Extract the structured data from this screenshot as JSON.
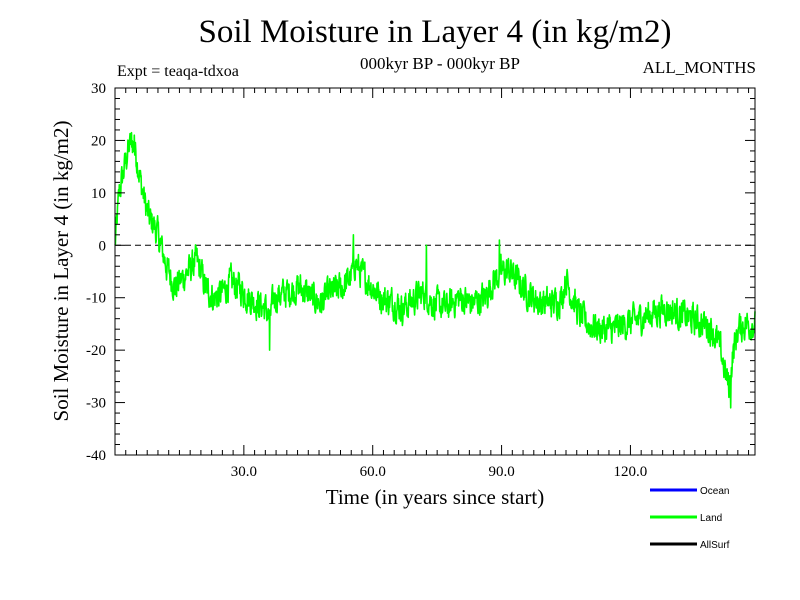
{
  "chart_data": {
    "type": "line",
    "title": "Soil Moisture in Layer 4 (in kg/m2)",
    "subtitle": "000kyr BP - 000kyr BP",
    "experiment": "Expt = teaqa-tdxoa",
    "season": "ALL_MONTHS",
    "xlabel": "Time (in years since start)",
    "ylabel": "Soil Moisture in Layer 4 (in kg/m2)",
    "xlim": [
      0,
      149
    ],
    "ylim": [
      -40,
      30
    ],
    "xticks": [
      30,
      60,
      90,
      120
    ],
    "xtick_labels": [
      "30.0",
      "60.0",
      "90.0",
      "120.0"
    ],
    "yticks": [
      -40,
      -30,
      -20,
      -10,
      0,
      10,
      20,
      30
    ],
    "ytick_labels": [
      "-40",
      "-30",
      "-20",
      "-10",
      "0",
      "10",
      "20",
      "30"
    ],
    "reference_line": 0,
    "legend": [
      {
        "name": "Ocean",
        "color": "#0000ff"
      },
      {
        "name": "Land",
        "color": "#00ff00"
      },
      {
        "name": "AllSurf",
        "color": "#000000"
      }
    ],
    "series": [
      {
        "name": "Land",
        "color": "#00ff00",
        "sampling": "monthly",
        "anchors": [
          [
            0,
            0
          ],
          [
            0.5,
            5
          ],
          [
            1,
            10
          ],
          [
            2,
            14
          ],
          [
            3,
            18
          ],
          [
            4,
            20
          ],
          [
            5,
            17
          ],
          [
            6,
            12
          ],
          [
            7,
            8
          ],
          [
            8,
            5
          ],
          [
            9,
            4
          ],
          [
            10,
            2
          ],
          [
            11,
            -1
          ],
          [
            12,
            -4
          ],
          [
            13,
            -6
          ],
          [
            14,
            -8
          ],
          [
            15,
            -7
          ],
          [
            16,
            -6
          ],
          [
            17,
            -5
          ],
          [
            18,
            -4
          ],
          [
            19,
            -3
          ],
          [
            20,
            -5
          ],
          [
            21,
            -8
          ],
          [
            23,
            -10
          ],
          [
            25,
            -9
          ],
          [
            27,
            -7
          ],
          [
            29,
            -8
          ],
          [
            31,
            -10
          ],
          [
            33,
            -11
          ],
          [
            35,
            -12
          ],
          [
            36,
            -14
          ],
          [
            37,
            -10
          ],
          [
            40,
            -9
          ],
          [
            43,
            -8
          ],
          [
            46,
            -10
          ],
          [
            48,
            -11
          ],
          [
            50,
            -9
          ],
          [
            53,
            -8
          ],
          [
            55,
            -6
          ],
          [
            56,
            -3
          ],
          [
            57,
            -5
          ],
          [
            59,
            -7
          ],
          [
            62,
            -10
          ],
          [
            65,
            -11
          ],
          [
            67,
            -12
          ],
          [
            70,
            -10
          ],
          [
            72,
            -9
          ],
          [
            74,
            -11
          ],
          [
            77,
            -12
          ],
          [
            80,
            -10
          ],
          [
            83,
            -11
          ],
          [
            86,
            -10
          ],
          [
            88,
            -7
          ],
          [
            90,
            -5
          ],
          [
            92,
            -5
          ],
          [
            94,
            -7
          ],
          [
            96,
            -9
          ],
          [
            99,
            -11
          ],
          [
            102,
            -11
          ],
          [
            104,
            -10
          ],
          [
            105,
            -6
          ],
          [
            106,
            -9
          ],
          [
            108,
            -13
          ],
          [
            110,
            -15
          ],
          [
            113,
            -16
          ],
          [
            116,
            -16
          ],
          [
            119,
            -15
          ],
          [
            122,
            -14
          ],
          [
            125,
            -13
          ],
          [
            128,
            -12
          ],
          [
            131,
            -13
          ],
          [
            134,
            -14
          ],
          [
            137,
            -15
          ],
          [
            139,
            -16
          ],
          [
            140,
            -18
          ],
          [
            141,
            -20
          ],
          [
            142,
            -24
          ],
          [
            143,
            -27
          ],
          [
            144,
            -20
          ],
          [
            145,
            -16
          ],
          [
            147,
            -15
          ],
          [
            149,
            -15
          ]
        ],
        "spikes": [
          {
            "x": 4.5,
            "y": 21
          },
          {
            "x": 36,
            "y": -20
          },
          {
            "x": 55.5,
            "y": 2
          },
          {
            "x": 72.5,
            "y": 0
          },
          {
            "x": 89.5,
            "y": 1
          },
          {
            "x": 143.3,
            "y": -31
          }
        ],
        "noise_amplitude": 4.5
      }
    ]
  }
}
